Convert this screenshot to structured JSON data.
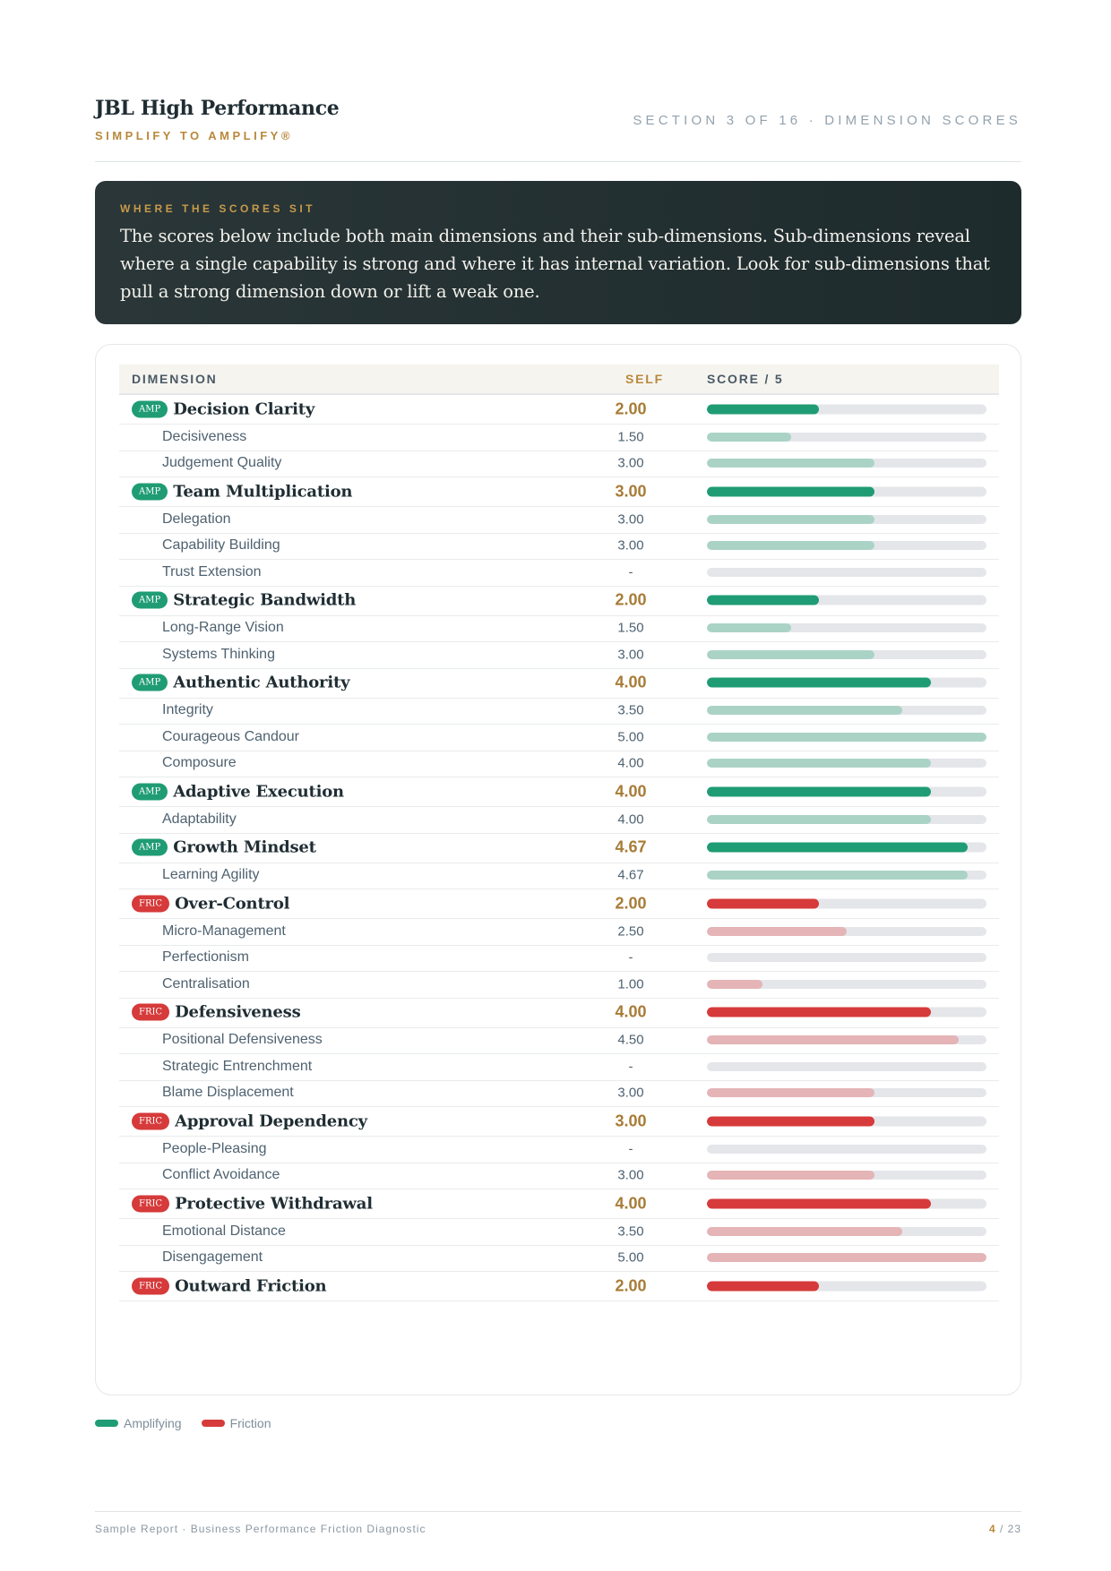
{
  "header": {
    "brand_title": "JBL High Performance",
    "brand_tagline": "SIMPLIFY TO AMPLIFY®",
    "section_label": "SECTION 3 OF 16 · DIMENSION SCORES"
  },
  "callout": {
    "eyebrow": "WHERE THE SCORES SIT",
    "body": "The scores below include both main dimensions and their sub-dimensions. Sub-dimensions reveal where a single capability is strong and where it has internal variation. Look for sub-dimensions that pull a strong dimension down or lift a weak one."
  },
  "table": {
    "headers": {
      "dimension": "DIMENSION",
      "self": "SELF",
      "score": "SCORE / 5"
    },
    "max_score": 5,
    "rows": [
      {
        "kind": "main",
        "type": "amp",
        "badge": "AMP",
        "label": "Decision Clarity",
        "value": "2.00",
        "score": 2.0
      },
      {
        "kind": "sub",
        "type": "amp",
        "label": "Decisiveness",
        "value": "1.50",
        "score": 1.5
      },
      {
        "kind": "sub",
        "type": "amp",
        "label": "Judgement Quality",
        "value": "3.00",
        "score": 3.0
      },
      {
        "kind": "main",
        "type": "amp",
        "badge": "AMP",
        "label": "Team Multiplication",
        "value": "3.00",
        "score": 3.0
      },
      {
        "kind": "sub",
        "type": "amp",
        "label": "Delegation",
        "value": "3.00",
        "score": 3.0
      },
      {
        "kind": "sub",
        "type": "amp",
        "label": "Capability Building",
        "value": "3.00",
        "score": 3.0
      },
      {
        "kind": "sub",
        "type": "amp",
        "label": "Trust Extension",
        "value": "-",
        "score": 0
      },
      {
        "kind": "main",
        "type": "amp",
        "badge": "AMP",
        "label": "Strategic Bandwidth",
        "value": "2.00",
        "score": 2.0
      },
      {
        "kind": "sub",
        "type": "amp",
        "label": "Long-Range Vision",
        "value": "1.50",
        "score": 1.5
      },
      {
        "kind": "sub",
        "type": "amp",
        "label": "Systems Thinking",
        "value": "3.00",
        "score": 3.0
      },
      {
        "kind": "main",
        "type": "amp",
        "badge": "AMP",
        "label": "Authentic Authority",
        "value": "4.00",
        "score": 4.0
      },
      {
        "kind": "sub",
        "type": "amp",
        "label": "Integrity",
        "value": "3.50",
        "score": 3.5
      },
      {
        "kind": "sub",
        "type": "amp",
        "label": "Courageous Candour",
        "value": "5.00",
        "score": 5.0
      },
      {
        "kind": "sub",
        "type": "amp",
        "label": "Composure",
        "value": "4.00",
        "score": 4.0
      },
      {
        "kind": "main",
        "type": "amp",
        "badge": "AMP",
        "label": "Adaptive Execution",
        "value": "4.00",
        "score": 4.0
      },
      {
        "kind": "sub",
        "type": "amp",
        "label": "Adaptability",
        "value": "4.00",
        "score": 4.0
      },
      {
        "kind": "main",
        "type": "amp",
        "badge": "AMP",
        "label": "Growth Mindset",
        "value": "4.67",
        "score": 4.67
      },
      {
        "kind": "sub",
        "type": "amp",
        "label": "Learning Agility",
        "value": "4.67",
        "score": 4.67
      },
      {
        "kind": "main",
        "type": "fric",
        "badge": "FRIC",
        "label": "Over-Control",
        "value": "2.00",
        "score": 2.0
      },
      {
        "kind": "sub",
        "type": "fric",
        "label": "Micro-Management",
        "value": "2.50",
        "score": 2.5
      },
      {
        "kind": "sub",
        "type": "fric",
        "label": "Perfectionism",
        "value": "-",
        "score": 0
      },
      {
        "kind": "sub",
        "type": "fric",
        "label": "Centralisation",
        "value": "1.00",
        "score": 1.0
      },
      {
        "kind": "main",
        "type": "fric",
        "badge": "FRIC",
        "label": "Defensiveness",
        "value": "4.00",
        "score": 4.0
      },
      {
        "kind": "sub",
        "type": "fric",
        "label": "Positional Defensiveness",
        "value": "4.50",
        "score": 4.5
      },
      {
        "kind": "sub",
        "type": "fric",
        "label": "Strategic Entrenchment",
        "value": "-",
        "score": 0
      },
      {
        "kind": "sub",
        "type": "fric",
        "label": "Blame Displacement",
        "value": "3.00",
        "score": 3.0
      },
      {
        "kind": "main",
        "type": "fric",
        "badge": "FRIC",
        "label": "Approval Dependency",
        "value": "3.00",
        "score": 3.0
      },
      {
        "kind": "sub",
        "type": "fric",
        "label": "People-Pleasing",
        "value": "-",
        "score": 0
      },
      {
        "kind": "sub",
        "type": "fric",
        "label": "Conflict Avoidance",
        "value": "3.00",
        "score": 3.0
      },
      {
        "kind": "main",
        "type": "fric",
        "badge": "FRIC",
        "label": "Protective Withdrawal",
        "value": "4.00",
        "score": 4.0
      },
      {
        "kind": "sub",
        "type": "fric",
        "label": "Emotional Distance",
        "value": "3.50",
        "score": 3.5
      },
      {
        "kind": "sub",
        "type": "fric",
        "label": "Disengagement",
        "value": "5.00",
        "score": 5.0
      },
      {
        "kind": "main",
        "type": "fric",
        "badge": "FRIC",
        "label": "Outward Friction",
        "value": "2.00",
        "score": 2.0
      }
    ]
  },
  "legend": {
    "amp": "Amplifying",
    "fric": "Friction"
  },
  "footer": {
    "text": "Sample Report · Business Performance Friction Diagnostic",
    "page_current": "4",
    "page_total": "/ 23"
  },
  "colors": {
    "amp_main": "#1f9c73",
    "amp_sub": "#aad3c6",
    "fric_main": "#d63a3a",
    "fric_sub": "#e4b4b6",
    "accent_gold": "#b8893c",
    "track": "#e4e6ea"
  }
}
